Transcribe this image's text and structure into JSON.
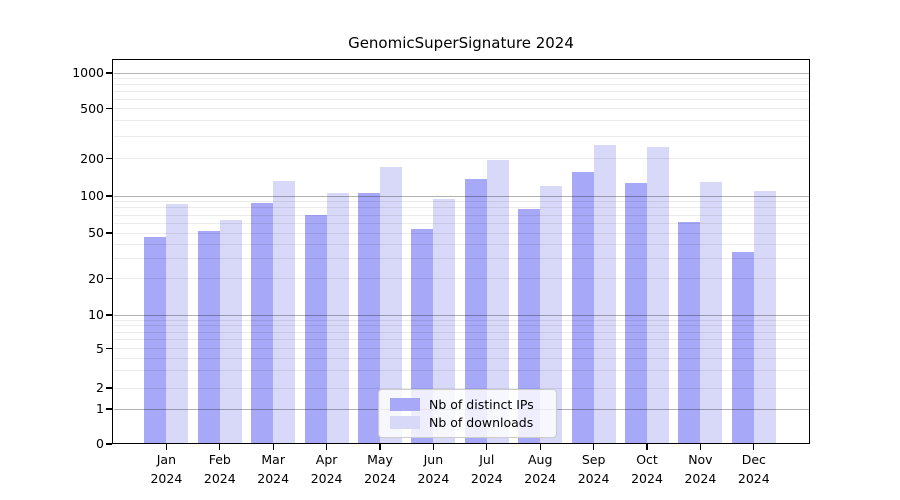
{
  "title": "GenomicSuperSignature 2024",
  "chart_data": {
    "type": "bar",
    "title": "GenomicSuperSignature 2024",
    "categories": [
      "Jan 2024",
      "Feb 2024",
      "Mar 2024",
      "Apr 2024",
      "May 2024",
      "Jun 2024",
      "Jul 2024",
      "Aug 2024",
      "Sep 2024",
      "Oct 2024",
      "Nov 2024",
      "Dec 2024"
    ],
    "series": [
      {
        "name": "Nb of distinct IPs",
        "color": "#a8a8f8",
        "values": [
          46,
          52,
          88,
          70,
          105,
          54,
          136,
          79,
          155,
          127,
          61,
          34
        ]
      },
      {
        "name": "Nb of downloads",
        "color": "#d8d8f8",
        "values": [
          86,
          64,
          132,
          105,
          172,
          95,
          195,
          120,
          255,
          245,
          129,
          110
        ]
      }
    ],
    "xlabel": "",
    "ylabel": "",
    "yscale": "symlog",
    "yticks": [
      0,
      1,
      2,
      5,
      10,
      20,
      50,
      100,
      200,
      500,
      1000
    ],
    "ylim": [
      0,
      1400
    ],
    "grid": true,
    "legend_position": "bottom-center"
  },
  "colors": {
    "bar_dark": "#a8a8f8",
    "bar_light": "#d8d8f8",
    "major_grid": "rgba(0,0,0,0.30)",
    "minor_grid": "rgba(0,0,0,0.08)",
    "axis": "#000000",
    "background": "#ffffff"
  }
}
